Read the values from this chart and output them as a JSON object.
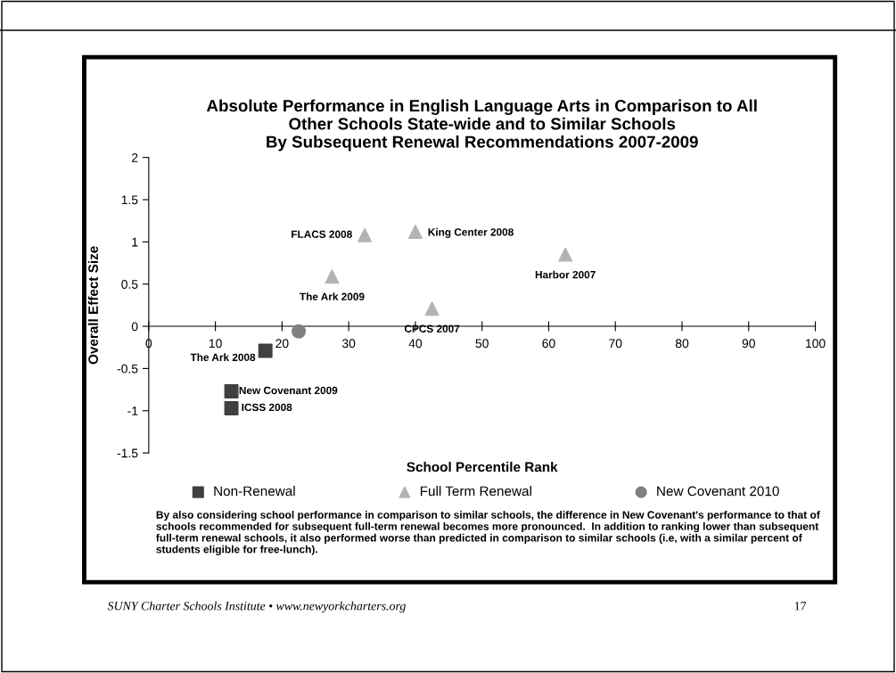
{
  "chart_data": {
    "type": "scatter",
    "title": "Absolute Performance in English Language Arts in Comparison to All\nOther Schools State-wide and to Similar Schools\nBy Subsequent Renewal Recommendations 2007-2009",
    "xlabel": "School Percentile Rank",
    "ylabel": "Overall Effect Size",
    "xlim": [
      0,
      100
    ],
    "xticks": [
      0,
      10,
      20,
      30,
      40,
      50,
      60,
      70,
      80,
      90,
      100
    ],
    "ylim": [
      -1.5,
      2
    ],
    "yticks": [
      -1.5,
      -1,
      -0.5,
      0,
      0.5,
      1,
      1.5,
      2
    ],
    "grid": false,
    "legend": "bottom",
    "series": [
      {
        "name": "Non-Renewal",
        "color": "#404040",
        "marker": "square",
        "x": [
          17.5,
          12.4,
          12.4
        ],
        "values": [
          -0.29,
          -0.77,
          -0.97
        ]
      },
      {
        "name": "Full Term Renewal",
        "color": "#b3b3b3",
        "marker": "triangle",
        "x": [
          32.4,
          40.0,
          27.5,
          42.5,
          62.5
        ],
        "values": [
          1.08,
          1.12,
          0.59,
          0.21,
          0.85
        ]
      },
      {
        "name": "New Covenant 2010",
        "color": "#808080",
        "marker": "circle",
        "x": [
          22.5
        ],
        "values": [
          -0.06
        ]
      }
    ],
    "annotations": [
      {
        "text": "The Ark 2008",
        "x": 17.5,
        "y": -0.29
      },
      {
        "text": "New Covenant 2009",
        "x": 12.4,
        "y": -0.77
      },
      {
        "text": "ICSS 2008",
        "x": 12.4,
        "y": -0.97
      },
      {
        "text": "FLACS 2008",
        "x": 32.4,
        "y": 1.08
      },
      {
        "text": "King Center 2008",
        "x": 40.0,
        "y": 1.12
      },
      {
        "text": "The Ark 2009",
        "x": 27.5,
        "y": 0.59
      },
      {
        "text": "CPCS 2007",
        "x": 42.5,
        "y": 0.21
      },
      {
        "text": "Harbor 2007",
        "x": 62.5,
        "y": 0.85
      },
      "By also considering school performance in comparison to similar schools, the difference in New Covenant's performance to that of schools recommended for subsequent full-term renewal becomes more pronounced.  In addition to ranking lower than subsequent full-term renewal schools, it also performed worse than predicted in comparison to similar schools (i.e, with a similar percent of students eligible for free-lunch).",
      "SUNY Charter Schools Institute • www.newyorkcharters.org",
      "17"
    ]
  }
}
